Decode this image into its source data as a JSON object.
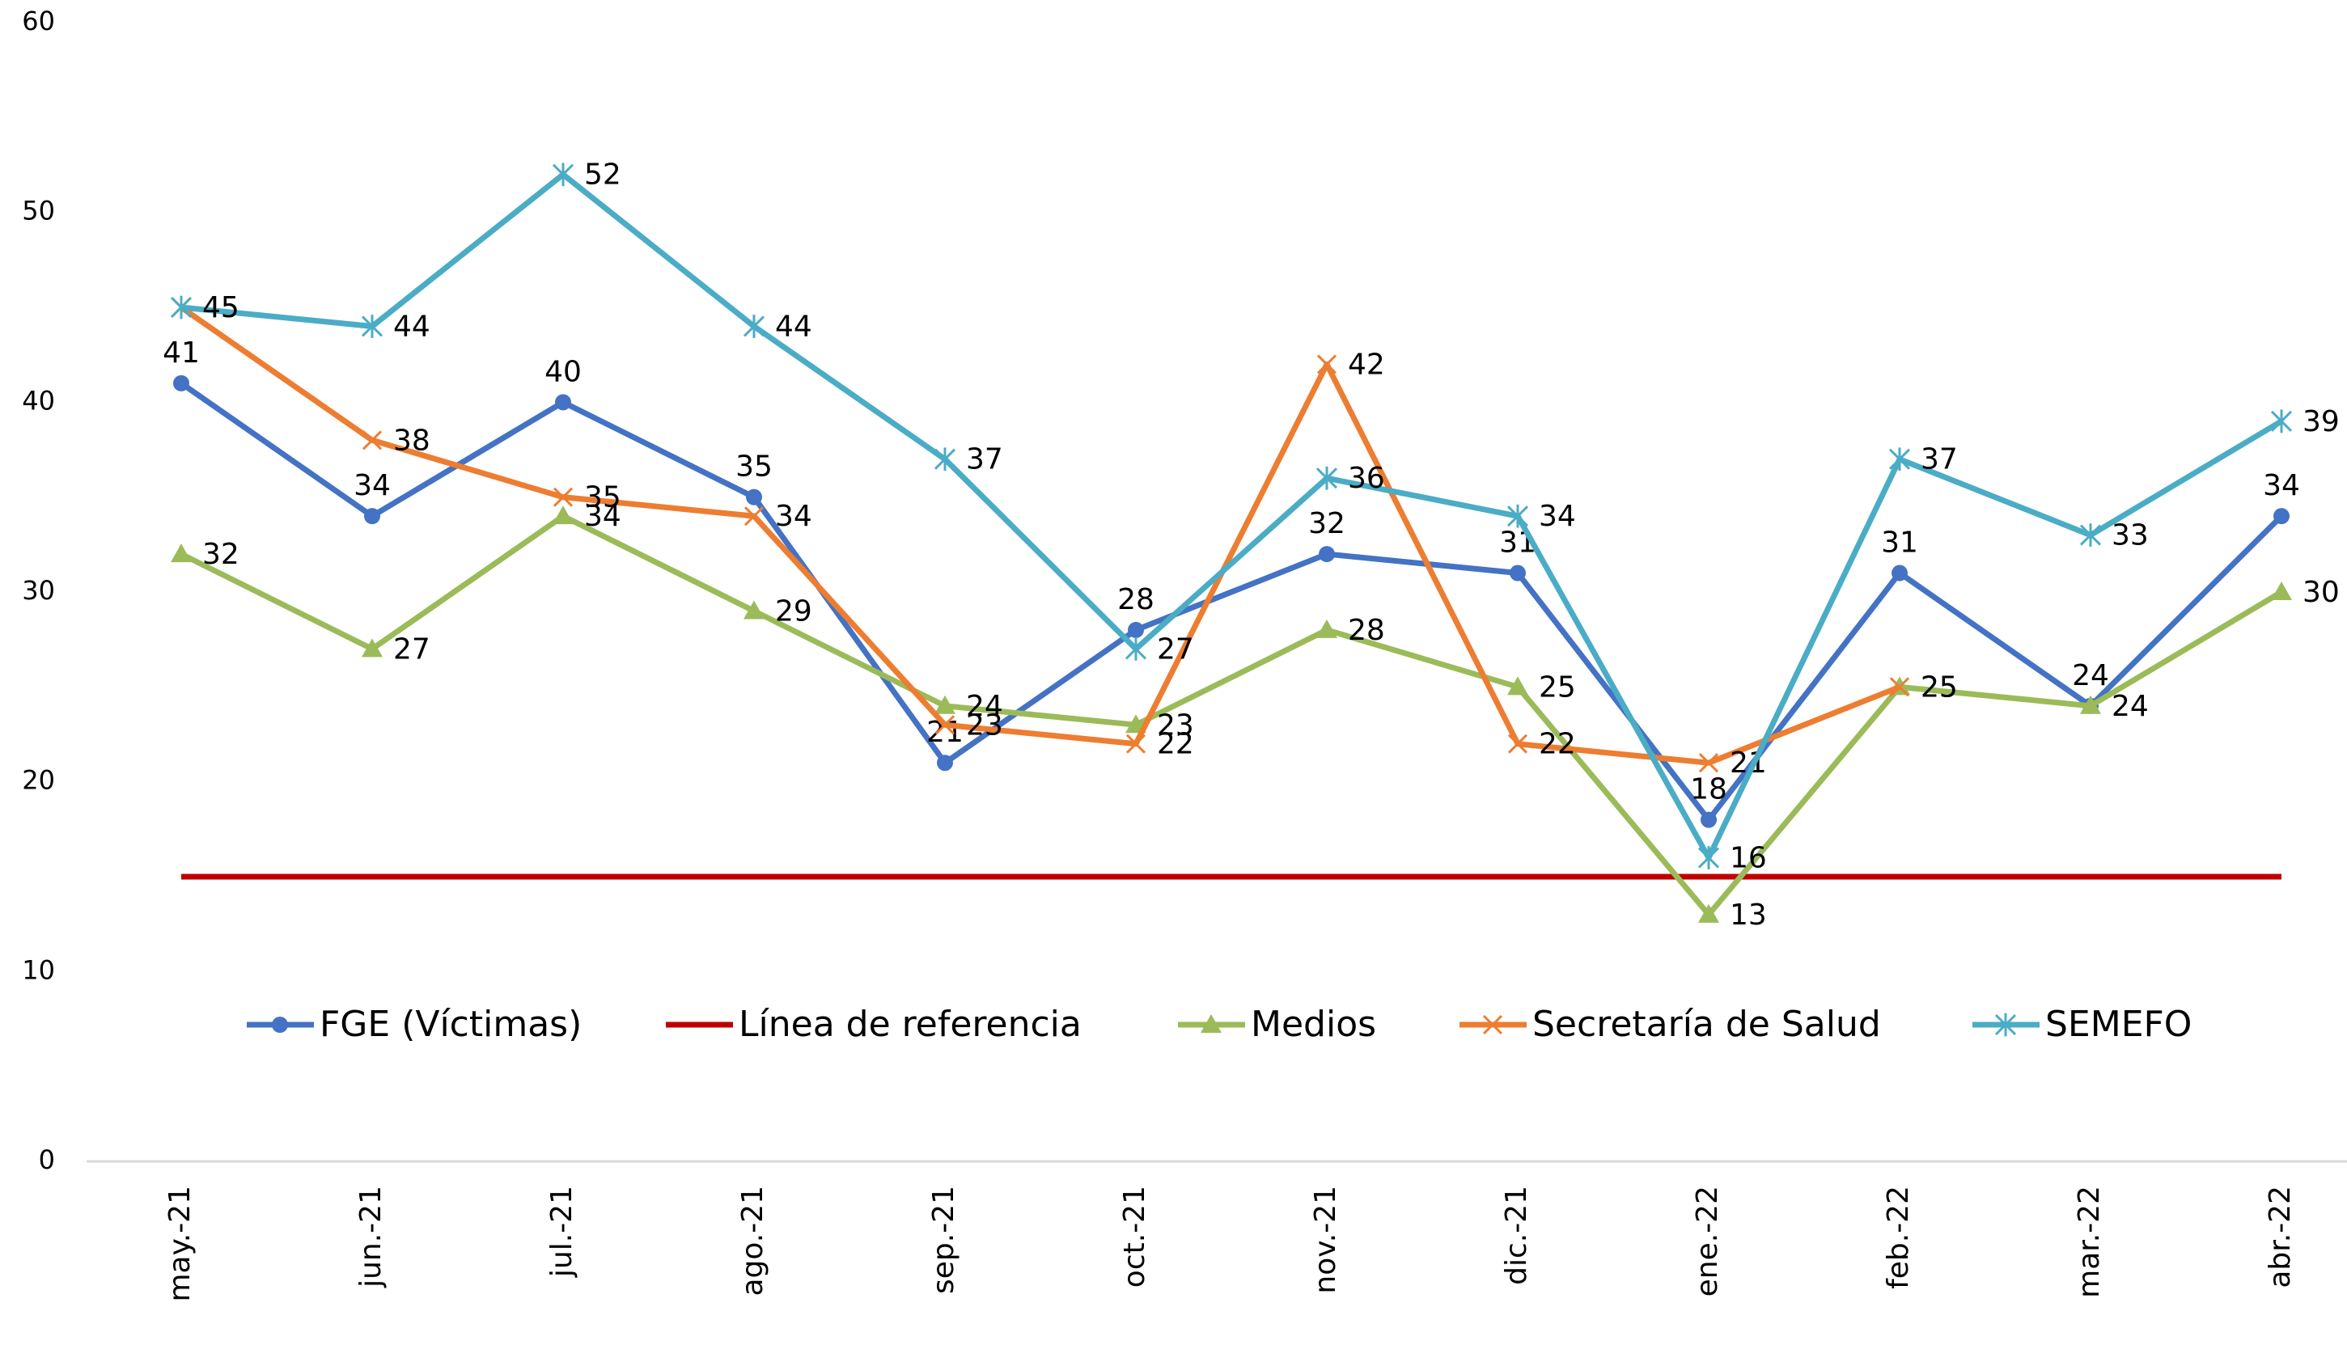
{
  "chart_data": {
    "type": "line",
    "categories": [
      "may.-21",
      "jun.-21",
      "jul.-21",
      "ago.-21",
      "sep.-21",
      "oct.-21",
      "nov.-21",
      "dic.-21",
      "ene.-22",
      "feb.-22",
      "mar.-22",
      "abr.-22"
    ],
    "series": [
      {
        "name": "FGE (Víctimas)",
        "color": "#4472c4",
        "marker": "circle",
        "values": [
          41,
          34,
          40,
          35,
          21,
          28,
          32,
          31,
          18,
          31,
          24,
          34
        ]
      },
      {
        "name": "Línea de referencia",
        "color": "#c00000",
        "marker": "none",
        "values": [
          15,
          15,
          15,
          15,
          15,
          15,
          15,
          15,
          15,
          15,
          15,
          15
        ]
      },
      {
        "name": "Medios",
        "color": "#9bbb59",
        "marker": "triangle",
        "values": [
          32,
          27,
          34,
          29,
          24,
          23,
          28,
          25,
          13,
          25,
          24,
          30
        ]
      },
      {
        "name": "Secretaría de Salud",
        "color": "#ed7d31",
        "marker": "x",
        "values": [
          45,
          38,
          35,
          34,
          23,
          22,
          42,
          22,
          21,
          25,
          null,
          null
        ]
      },
      {
        "name": "SEMEFO",
        "color": "#4bacc6",
        "marker": "star",
        "values": [
          45,
          44,
          52,
          44,
          37,
          27,
          36,
          34,
          16,
          37,
          33,
          39
        ]
      }
    ],
    "ylim": [
      0,
      60
    ],
    "yticks": [
      0,
      10,
      20,
      30,
      40,
      50,
      60
    ],
    "grid": false,
    "legend": "inside-bottom"
  }
}
